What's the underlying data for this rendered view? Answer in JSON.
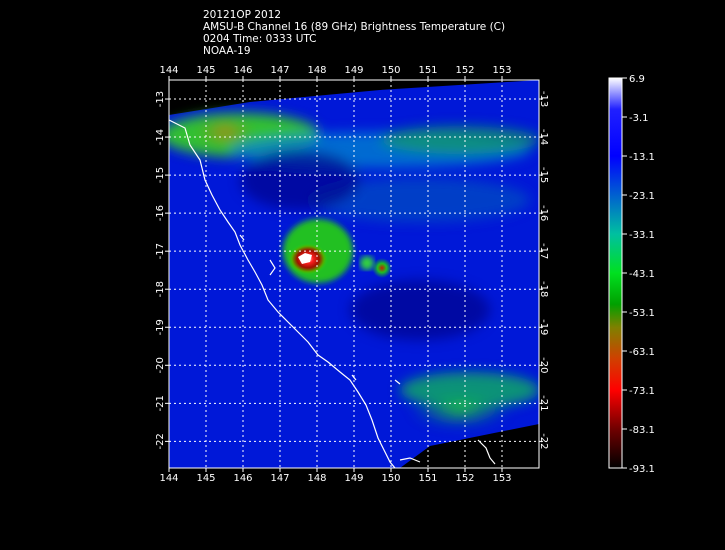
{
  "header": {
    "storm_line": "20121OP 2012",
    "product_line": "AMSU-B Channel 16 (89 GHz) Brightness Temperature (C)",
    "time_line": "0204 Time: 0333 UTC",
    "satellite_line": "NOAA-19"
  },
  "map": {
    "lon_ticks": [
      "144",
      "145",
      "146",
      "147",
      "148",
      "149",
      "150",
      "151",
      "152",
      "153"
    ],
    "lat_ticks": [
      "-13",
      "-14",
      "-15",
      "-16",
      "-17",
      "-18",
      "-19",
      "-20",
      "-21",
      "-22"
    ],
    "lon_range": [
      144,
      154
    ],
    "lat_range": [
      -12.5,
      -22.7
    ],
    "grid": true
  },
  "colorbar": {
    "labels": [
      "6.9",
      "-3.1",
      "-13.1",
      "-23.1",
      "-33.1",
      "-43.1",
      "-53.1",
      "-63.1",
      "-73.1",
      "-83.1",
      "-93.1"
    ],
    "range": [
      6.9,
      -93.1
    ],
    "colors": [
      "#ffffff",
      "#00008b",
      "#0000ff",
      "#0050d0",
      "#00a0b0",
      "#00d040",
      "#00c000",
      "#708000",
      "#d03000",
      "#ff0000",
      "#600000",
      "#000000"
    ]
  }
}
